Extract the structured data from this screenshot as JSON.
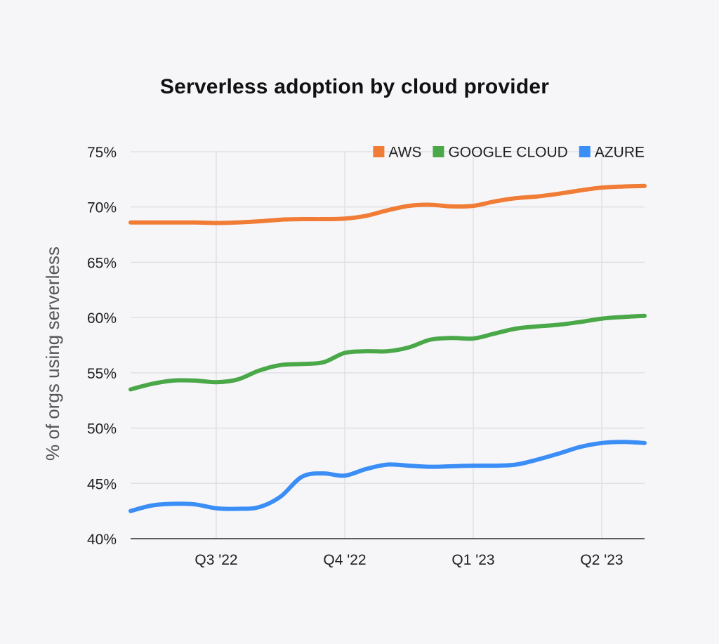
{
  "chart_data": {
    "type": "line",
    "title": "Serverless adoption by cloud provider",
    "xlabel": "",
    "ylabel": "% of orgs using serverless",
    "ylim": [
      40,
      75
    ],
    "y_ticks": [
      {
        "value": 40,
        "label": "40%"
      },
      {
        "value": 45,
        "label": "45%"
      },
      {
        "value": 50,
        "label": "50%"
      },
      {
        "value": 55,
        "label": "55%"
      },
      {
        "value": 60,
        "label": "60%"
      },
      {
        "value": 65,
        "label": "65%"
      },
      {
        "value": 70,
        "label": "70%"
      },
      {
        "value": 75,
        "label": "75%"
      }
    ],
    "xlim": [
      0,
      12
    ],
    "x_ticks": [
      {
        "value": 2,
        "label": "Q3 '22"
      },
      {
        "value": 5,
        "label": "Q4 '22"
      },
      {
        "value": 8,
        "label": "Q1 '23"
      },
      {
        "value": 11,
        "label": "Q2 '23"
      }
    ],
    "grid": true,
    "legend_position": "top-right",
    "x": [
      0,
      0.5,
      1,
      1.5,
      2,
      2.5,
      3,
      3.5,
      4,
      4.5,
      5,
      5.5,
      6,
      6.5,
      7,
      7.5,
      8,
      8.5,
      9,
      9.5,
      10,
      10.5,
      11,
      11.5,
      12
    ],
    "series": [
      {
        "name": "AWS",
        "color": "#f07c35",
        "values": [
          68.6,
          68.6,
          68.6,
          68.6,
          68.55,
          68.6,
          68.7,
          68.85,
          68.9,
          68.9,
          68.95,
          69.2,
          69.7,
          70.1,
          70.2,
          70.05,
          70.1,
          70.5,
          70.8,
          70.95,
          71.2,
          71.5,
          71.75,
          71.85,
          71.9
        ]
      },
      {
        "name": "GOOGLE CLOUD",
        "color": "#4aa848",
        "values": [
          53.5,
          54.0,
          54.3,
          54.3,
          54.15,
          54.4,
          55.2,
          55.7,
          55.8,
          55.95,
          56.8,
          56.95,
          56.95,
          57.3,
          58.0,
          58.15,
          58.1,
          58.55,
          59.0,
          59.2,
          59.35,
          59.6,
          59.9,
          60.05,
          60.15
        ]
      },
      {
        "name": "AZURE",
        "color": "#3a8ef6",
        "values": [
          42.5,
          43.0,
          43.15,
          43.1,
          42.75,
          42.7,
          42.85,
          43.8,
          45.6,
          45.9,
          45.7,
          46.3,
          46.7,
          46.6,
          46.5,
          46.55,
          46.6,
          46.6,
          46.7,
          47.15,
          47.7,
          48.3,
          48.65,
          48.75,
          48.65
        ]
      }
    ]
  }
}
